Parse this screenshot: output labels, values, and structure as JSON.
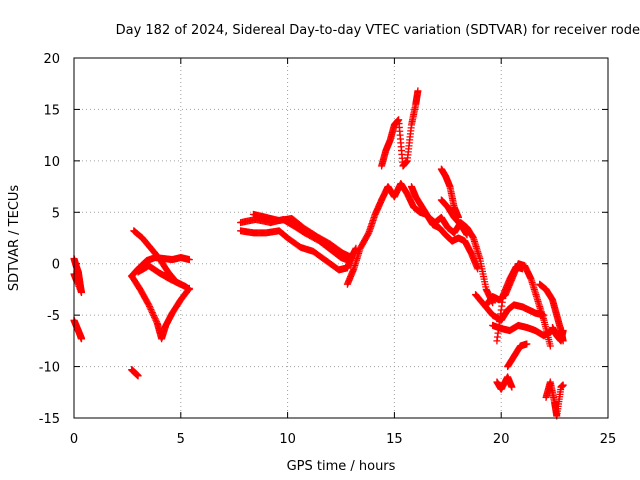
{
  "chart_data": {
    "type": "scatter",
    "title": "Day 182 of 2024, Sidereal Day-to-day VTEC variation (SDTVAR) for receiver rode",
    "xlabel": "GPS time / hours",
    "ylabel": "SDTVAR / TECUs",
    "xlim": [
      0,
      25
    ],
    "ylim": [
      -15,
      20
    ],
    "xticks": [
      0,
      5,
      10,
      15,
      20,
      25
    ],
    "yticks": [
      -15,
      -10,
      -5,
      0,
      5,
      10,
      15,
      20
    ],
    "grid": true,
    "marker": "+",
    "color": "#ff0000",
    "series": [
      {
        "name": "seg1",
        "points": [
          [
            0.0,
            0.5
          ],
          [
            0.1,
            -0.2
          ],
          [
            0.2,
            -0.8
          ],
          [
            0.25,
            -1.5
          ],
          [
            0.3,
            -2.2
          ],
          [
            0.35,
            -2.8
          ],
          [
            0.0,
            -1.0
          ],
          [
            0.15,
            -1.8
          ]
        ]
      },
      {
        "name": "seg2",
        "points": [
          [
            0.0,
            -5.5
          ],
          [
            0.1,
            -6.0
          ],
          [
            0.2,
            -6.5
          ],
          [
            0.3,
            -7.0
          ],
          [
            0.35,
            -7.3
          ]
        ]
      },
      {
        "name": "seg3",
        "points": [
          [
            2.7,
            -10.3
          ],
          [
            2.85,
            -10.6
          ],
          [
            3.0,
            -10.9
          ]
        ]
      },
      {
        "name": "seg4",
        "points": [
          [
            2.8,
            3.2
          ],
          [
            3.2,
            2.5
          ],
          [
            3.6,
            1.5
          ],
          [
            4.0,
            0.5
          ],
          [
            4.4,
            -0.8
          ],
          [
            4.8,
            -1.8
          ],
          [
            5.2,
            -2.2
          ],
          [
            5.4,
            -2.5
          ]
        ]
      },
      {
        "name": "seg5",
        "points": [
          [
            2.7,
            -1.2
          ],
          [
            3.0,
            -0.5
          ],
          [
            3.4,
            0.3
          ],
          [
            3.8,
            0.6
          ],
          [
            4.2,
            0.5
          ],
          [
            4.6,
            0.4
          ],
          [
            5.0,
            0.6
          ],
          [
            5.4,
            0.4
          ]
        ]
      },
      {
        "name": "seg6",
        "points": [
          [
            2.7,
            -1.2
          ],
          [
            3.1,
            -2.5
          ],
          [
            3.5,
            -4.0
          ],
          [
            3.9,
            -5.8
          ],
          [
            4.1,
            -7.3
          ],
          [
            4.3,
            -6.0
          ],
          [
            4.6,
            -4.8
          ],
          [
            5.0,
            -3.5
          ],
          [
            5.4,
            -2.4
          ]
        ]
      },
      {
        "name": "seg7",
        "points": [
          [
            3.0,
            -0.8
          ],
          [
            3.5,
            -0.2
          ],
          [
            4.0,
            -0.9
          ],
          [
            4.5,
            -1.5
          ],
          [
            5.0,
            -2.0
          ]
        ]
      },
      {
        "name": "seg8",
        "points": [
          [
            7.8,
            4.0
          ],
          [
            8.5,
            4.3
          ],
          [
            9.2,
            4.0
          ],
          [
            9.8,
            4.3
          ],
          [
            10.2,
            3.8
          ],
          [
            10.8,
            3.0
          ],
          [
            11.5,
            2.2
          ],
          [
            12.0,
            1.4
          ],
          [
            12.5,
            0.6
          ],
          [
            12.9,
            0.3
          ],
          [
            13.2,
            1.5
          ]
        ]
      },
      {
        "name": "seg9",
        "points": [
          [
            7.8,
            3.2
          ],
          [
            8.4,
            3.0
          ],
          [
            9.0,
            3.0
          ],
          [
            9.6,
            3.2
          ],
          [
            10.0,
            2.5
          ],
          [
            10.6,
            1.6
          ],
          [
            11.2,
            1.2
          ],
          [
            11.8,
            0.3
          ],
          [
            12.4,
            -0.6
          ],
          [
            12.8,
            -0.4
          ],
          [
            13.0,
            0.8
          ]
        ]
      },
      {
        "name": "seg10",
        "points": [
          [
            8.4,
            4.8
          ],
          [
            9.0,
            4.5
          ],
          [
            9.6,
            4.2
          ],
          [
            10.2,
            4.4
          ],
          [
            10.8,
            3.4
          ],
          [
            11.4,
            2.6
          ],
          [
            12.0,
            1.9
          ],
          [
            12.6,
            1.0
          ],
          [
            13.0,
            0.6
          ]
        ]
      },
      {
        "name": "seg11",
        "points": [
          [
            12.8,
            -2.0
          ],
          [
            13.1,
            -0.5
          ],
          [
            13.4,
            1.5
          ],
          [
            13.8,
            3.0
          ],
          [
            14.1,
            4.8
          ],
          [
            14.4,
            6.2
          ],
          [
            14.7,
            7.5
          ],
          [
            15.0,
            6.5
          ],
          [
            15.3,
            7.8
          ],
          [
            15.6,
            6.8
          ],
          [
            15.9,
            5.5
          ],
          [
            16.2,
            5.0
          ],
          [
            16.5,
            4.8
          ],
          [
            16.8,
            3.8
          ],
          [
            17.1,
            3.5
          ],
          [
            17.4,
            2.8
          ],
          [
            17.7,
            2.2
          ],
          [
            18.0,
            2.5
          ],
          [
            18.3,
            2.2
          ],
          [
            18.6,
            1.0
          ],
          [
            18.9,
            -0.5
          ]
        ]
      },
      {
        "name": "seg12",
        "points": [
          [
            14.4,
            9.5
          ],
          [
            14.6,
            11.0
          ],
          [
            14.8,
            12.0
          ],
          [
            15.0,
            13.5
          ],
          [
            15.2,
            14.0
          ],
          [
            15.4,
            9.5
          ],
          [
            15.6,
            10.0
          ],
          [
            15.8,
            13.5
          ],
          [
            16.0,
            15.5
          ],
          [
            16.1,
            16.8
          ]
        ]
      },
      {
        "name": "seg13",
        "points": [
          [
            15.8,
            7.5
          ],
          [
            16.0,
            6.5
          ],
          [
            16.3,
            5.5
          ],
          [
            16.6,
            4.5
          ],
          [
            16.9,
            4.0
          ],
          [
            17.2,
            4.5
          ],
          [
            17.5,
            3.5
          ],
          [
            17.8,
            3.0
          ],
          [
            18.1,
            4.0
          ],
          [
            18.4,
            3.5
          ],
          [
            18.7,
            2.5
          ],
          [
            19.0,
            0.5
          ],
          [
            19.3,
            -2.5
          ],
          [
            19.6,
            -3.8
          ]
        ]
      },
      {
        "name": "seg14",
        "points": [
          [
            17.2,
            6.2
          ],
          [
            17.5,
            5.5
          ],
          [
            17.8,
            4.5
          ],
          [
            18.1,
            3.8
          ],
          [
            18.4,
            2.8
          ]
        ]
      },
      {
        "name": "seg15",
        "points": [
          [
            17.2,
            9.2
          ],
          [
            17.4,
            8.5
          ],
          [
            17.6,
            7.5
          ],
          [
            17.8,
            5.5
          ],
          [
            18.0,
            4.5
          ]
        ]
      },
      {
        "name": "seg16",
        "points": [
          [
            18.8,
            -3.0
          ],
          [
            19.2,
            -4.0
          ],
          [
            19.6,
            -5.0
          ],
          [
            20.0,
            -5.5
          ],
          [
            20.3,
            -4.5
          ],
          [
            20.6,
            -4.0
          ],
          [
            21.0,
            -4.2
          ],
          [
            21.3,
            -4.5
          ],
          [
            21.6,
            -4.8
          ],
          [
            22.0,
            -5.0
          ]
        ]
      },
      {
        "name": "seg17",
        "points": [
          [
            19.3,
            -4.0
          ],
          [
            19.6,
            -3.2
          ],
          [
            19.9,
            -3.5
          ],
          [
            20.2,
            -3.0
          ],
          [
            20.5,
            -1.5
          ],
          [
            20.8,
            0.0
          ],
          [
            21.1,
            -0.2
          ],
          [
            21.4,
            -1.5
          ],
          [
            21.7,
            -3.5
          ],
          [
            22.0,
            -5.5
          ],
          [
            22.3,
            -8.0
          ]
        ]
      },
      {
        "name": "seg18",
        "points": [
          [
            19.6,
            -6.0
          ],
          [
            20.0,
            -6.3
          ],
          [
            20.4,
            -6.5
          ],
          [
            20.8,
            -6.0
          ],
          [
            21.2,
            -6.2
          ],
          [
            21.6,
            -6.5
          ],
          [
            22.0,
            -7.0
          ],
          [
            22.4,
            -6.5
          ]
        ]
      },
      {
        "name": "seg19",
        "points": [
          [
            19.8,
            -7.5
          ],
          [
            20.1,
            -3.0
          ],
          [
            20.4,
            -1.5
          ],
          [
            20.7,
            -0.3
          ],
          [
            21.0,
            -0.5
          ]
        ]
      },
      {
        "name": "seg20",
        "points": [
          [
            20.3,
            -10.0
          ],
          [
            20.6,
            -9.0
          ],
          [
            20.9,
            -8.0
          ],
          [
            21.2,
            -7.8
          ]
        ]
      },
      {
        "name": "seg21",
        "points": [
          [
            19.8,
            -11.5
          ],
          [
            20.0,
            -12.2
          ],
          [
            20.3,
            -11.0
          ],
          [
            20.5,
            -12.0
          ]
        ]
      },
      {
        "name": "seg22",
        "points": [
          [
            21.8,
            -2.0
          ],
          [
            22.1,
            -2.5
          ],
          [
            22.4,
            -3.5
          ],
          [
            22.6,
            -5.0
          ],
          [
            22.8,
            -6.5
          ],
          [
            22.9,
            -7.5
          ]
        ]
      },
      {
        "name": "seg23",
        "points": [
          [
            22.1,
            -13.0
          ],
          [
            22.3,
            -11.5
          ],
          [
            22.5,
            -13.5
          ],
          [
            22.6,
            -14.8
          ],
          [
            22.8,
            -12.0
          ],
          [
            22.9,
            -11.8
          ]
        ]
      },
      {
        "name": "seg24",
        "points": [
          [
            22.4,
            -6.2
          ],
          [
            22.6,
            -7.0
          ],
          [
            22.8,
            -7.5
          ],
          [
            22.9,
            -6.5
          ]
        ]
      }
    ]
  }
}
